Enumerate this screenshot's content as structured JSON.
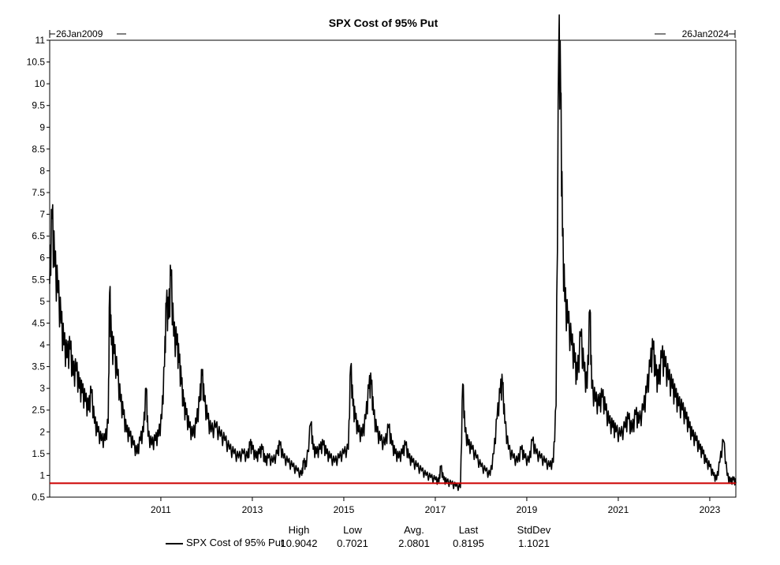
{
  "chart_data": {
    "type": "line",
    "title": "SPX Cost of 95% Put",
    "range_start_label": "26Jan2009",
    "range_end_label": "26Jan2024",
    "x_range": [
      2009.07,
      2024.07
    ],
    "ylim": [
      0.5,
      11
    ],
    "y_ticks": [
      "0.5",
      "1",
      "1.5",
      "2",
      "2.5",
      "3",
      "3.5",
      "4",
      "4.5",
      "5",
      "5.5",
      "6",
      "6.5",
      "7",
      "7.5",
      "8",
      "8.5",
      "9",
      "9.5",
      "10",
      "10.5",
      "11"
    ],
    "x_ticks": [
      "2011",
      "2013",
      "2015",
      "2017",
      "2019",
      "2021",
      "2023"
    ],
    "grid": false,
    "reference_line": {
      "value": 0.8195,
      "color": "#cc0000"
    },
    "series": [
      {
        "name": "SPX Cost of 95% Put",
        "color": "#000000",
        "points": [
          [
            2009.07,
            5.4
          ],
          [
            2009.12,
            6.9
          ],
          [
            2009.18,
            5.8
          ],
          [
            2009.25,
            5.2
          ],
          [
            2009.32,
            4.5
          ],
          [
            2009.38,
            4.0
          ],
          [
            2009.45,
            3.7
          ],
          [
            2009.52,
            3.9
          ],
          [
            2009.58,
            3.3
          ],
          [
            2009.65,
            3.4
          ],
          [
            2009.72,
            3.0
          ],
          [
            2009.78,
            2.9
          ],
          [
            2009.85,
            2.7
          ],
          [
            2009.92,
            2.5
          ],
          [
            2009.98,
            2.9
          ],
          [
            2010.05,
            2.2
          ],
          [
            2010.12,
            2.0
          ],
          [
            2010.2,
            1.8
          ],
          [
            2010.28,
            1.8
          ],
          [
            2010.35,
            2.2
          ],
          [
            2010.38,
            5.2
          ],
          [
            2010.42,
            4.0
          ],
          [
            2010.48,
            3.8
          ],
          [
            2010.55,
            3.3
          ],
          [
            2010.62,
            2.7
          ],
          [
            2010.68,
            2.4
          ],
          [
            2010.75,
            2.0
          ],
          [
            2010.82,
            1.9
          ],
          [
            2010.9,
            1.7
          ],
          [
            2010.98,
            1.5
          ],
          [
            2011.05,
            1.8
          ],
          [
            2011.12,
            2.0
          ],
          [
            2011.18,
            3.0
          ],
          [
            2011.22,
            1.9
          ],
          [
            2011.3,
            1.7
          ],
          [
            2011.38,
            1.8
          ],
          [
            2011.45,
            1.9
          ],
          [
            2011.52,
            2.3
          ],
          [
            2011.58,
            3.5
          ],
          [
            2011.62,
            4.9
          ],
          [
            2011.67,
            4.6
          ],
          [
            2011.72,
            5.6
          ],
          [
            2011.78,
            4.2
          ],
          [
            2011.85,
            4.0
          ],
          [
            2011.9,
            3.6
          ],
          [
            2011.95,
            3.1
          ],
          [
            2012.0,
            2.6
          ],
          [
            2012.05,
            2.4
          ],
          [
            2012.12,
            2.1
          ],
          [
            2012.2,
            1.9
          ],
          [
            2012.28,
            2.2
          ],
          [
            2012.35,
            2.7
          ],
          [
            2012.4,
            3.3
          ],
          [
            2012.45,
            2.7
          ],
          [
            2012.52,
            2.3
          ],
          [
            2012.6,
            2.0
          ],
          [
            2012.7,
            2.1
          ],
          [
            2012.8,
            1.9
          ],
          [
            2012.9,
            1.8
          ],
          [
            2013.0,
            1.6
          ],
          [
            2013.1,
            1.5
          ],
          [
            2013.2,
            1.4
          ],
          [
            2013.3,
            1.5
          ],
          [
            2013.4,
            1.4
          ],
          [
            2013.45,
            1.7
          ],
          [
            2013.5,
            1.6
          ],
          [
            2013.58,
            1.4
          ],
          [
            2013.65,
            1.5
          ],
          [
            2013.72,
            1.6
          ],
          [
            2013.78,
            1.3
          ],
          [
            2013.85,
            1.4
          ],
          [
            2013.95,
            1.3
          ],
          [
            2014.05,
            1.5
          ],
          [
            2014.1,
            1.7
          ],
          [
            2014.18,
            1.4
          ],
          [
            2014.28,
            1.3
          ],
          [
            2014.38,
            1.2
          ],
          [
            2014.48,
            1.1
          ],
          [
            2014.58,
            1.0
          ],
          [
            2014.62,
            1.3
          ],
          [
            2014.68,
            1.2
          ],
          [
            2014.78,
            2.2
          ],
          [
            2014.83,
            1.6
          ],
          [
            2014.9,
            1.5
          ],
          [
            2014.98,
            1.6
          ],
          [
            2015.05,
            1.7
          ],
          [
            2015.12,
            1.5
          ],
          [
            2015.2,
            1.4
          ],
          [
            2015.3,
            1.3
          ],
          [
            2015.4,
            1.4
          ],
          [
            2015.5,
            1.5
          ],
          [
            2015.6,
            1.6
          ],
          [
            2015.65,
            3.5
          ],
          [
            2015.7,
            2.6
          ],
          [
            2015.75,
            2.3
          ],
          [
            2015.82,
            2.0
          ],
          [
            2015.9,
            1.9
          ],
          [
            2015.98,
            2.3
          ],
          [
            2016.05,
            3.0
          ],
          [
            2016.1,
            3.1
          ],
          [
            2016.15,
            2.4
          ],
          [
            2016.22,
            2.0
          ],
          [
            2016.3,
            1.8
          ],
          [
            2016.4,
            1.7
          ],
          [
            2016.48,
            2.1
          ],
          [
            2016.55,
            1.7
          ],
          [
            2016.62,
            1.5
          ],
          [
            2016.7,
            1.4
          ],
          [
            2016.78,
            1.5
          ],
          [
            2016.85,
            1.7
          ],
          [
            2016.92,
            1.4
          ],
          [
            2017.0,
            1.3
          ],
          [
            2017.1,
            1.2
          ],
          [
            2017.2,
            1.1
          ],
          [
            2017.3,
            1.0
          ],
          [
            2017.4,
            0.95
          ],
          [
            2017.5,
            0.9
          ],
          [
            2017.58,
            0.85
          ],
          [
            2017.62,
            1.2
          ],
          [
            2017.68,
            0.9
          ],
          [
            2017.75,
            0.85
          ],
          [
            2017.85,
            0.8
          ],
          [
            2017.95,
            0.75
          ],
          [
            2018.05,
            0.72
          ],
          [
            2018.1,
            3.1
          ],
          [
            2018.15,
            2.0
          ],
          [
            2018.22,
            1.7
          ],
          [
            2018.3,
            1.6
          ],
          [
            2018.4,
            1.4
          ],
          [
            2018.5,
            1.2
          ],
          [
            2018.6,
            1.1
          ],
          [
            2018.7,
            1.0
          ],
          [
            2018.78,
            1.5
          ],
          [
            2018.85,
            2.3
          ],
          [
            2018.92,
            2.9
          ],
          [
            2018.97,
            3.1
          ],
          [
            2019.02,
            2.2
          ],
          [
            2019.1,
            1.6
          ],
          [
            2019.2,
            1.4
          ],
          [
            2019.3,
            1.3
          ],
          [
            2019.38,
            1.6
          ],
          [
            2019.45,
            1.4
          ],
          [
            2019.55,
            1.3
          ],
          [
            2019.62,
            1.8
          ],
          [
            2019.7,
            1.5
          ],
          [
            2019.8,
            1.4
          ],
          [
            2019.9,
            1.3
          ],
          [
            2020.0,
            1.2
          ],
          [
            2020.08,
            1.3
          ],
          [
            2020.14,
            2.6
          ],
          [
            2020.2,
            10.9
          ],
          [
            2020.24,
            9.8
          ],
          [
            2020.28,
            6.5
          ],
          [
            2020.33,
            5.0
          ],
          [
            2020.4,
            4.5
          ],
          [
            2020.48,
            4.0
          ],
          [
            2020.55,
            3.6
          ],
          [
            2020.6,
            3.2
          ],
          [
            2020.68,
            4.2
          ],
          [
            2020.75,
            3.4
          ],
          [
            2020.82,
            3.0
          ],
          [
            2020.88,
            4.8
          ],
          [
            2020.92,
            3.0
          ],
          [
            2021.0,
            2.7
          ],
          [
            2021.08,
            2.6
          ],
          [
            2021.15,
            2.8
          ],
          [
            2021.22,
            2.5
          ],
          [
            2021.3,
            2.2
          ],
          [
            2021.38,
            2.1
          ],
          [
            2021.45,
            2.0
          ],
          [
            2021.55,
            1.9
          ],
          [
            2021.65,
            2.1
          ],
          [
            2021.72,
            2.3
          ],
          [
            2021.8,
            2.0
          ],
          [
            2021.88,
            2.4
          ],
          [
            2021.95,
            2.2
          ],
          [
            2022.05,
            2.5
          ],
          [
            2022.12,
            2.9
          ],
          [
            2022.2,
            3.5
          ],
          [
            2022.26,
            3.9
          ],
          [
            2022.32,
            3.3
          ],
          [
            2022.38,
            3.1
          ],
          [
            2022.45,
            3.7
          ],
          [
            2022.52,
            3.5
          ],
          [
            2022.6,
            3.2
          ],
          [
            2022.68,
            3.0
          ],
          [
            2022.75,
            2.8
          ],
          [
            2022.82,
            2.6
          ],
          [
            2022.9,
            2.5
          ],
          [
            2022.98,
            2.3
          ],
          [
            2023.05,
            2.1
          ],
          [
            2023.12,
            1.9
          ],
          [
            2023.2,
            1.8
          ],
          [
            2023.28,
            1.6
          ],
          [
            2023.35,
            1.5
          ],
          [
            2023.42,
            1.3
          ],
          [
            2023.5,
            1.2
          ],
          [
            2023.58,
            1.0
          ],
          [
            2023.65,
            0.9
          ],
          [
            2023.72,
            1.3
          ],
          [
            2023.8,
            1.8
          ],
          [
            2023.88,
            1.0
          ],
          [
            2023.95,
            0.85
          ],
          [
            2024.02,
            0.9
          ],
          [
            2024.07,
            0.82
          ]
        ]
      }
    ],
    "stats": {
      "headers": [
        "High",
        "Low",
        "Avg.",
        "Last",
        "StdDev"
      ],
      "values": [
        "10.9042",
        "0.7021",
        "2.0801",
        "0.8195",
        "1.1021"
      ]
    }
  }
}
